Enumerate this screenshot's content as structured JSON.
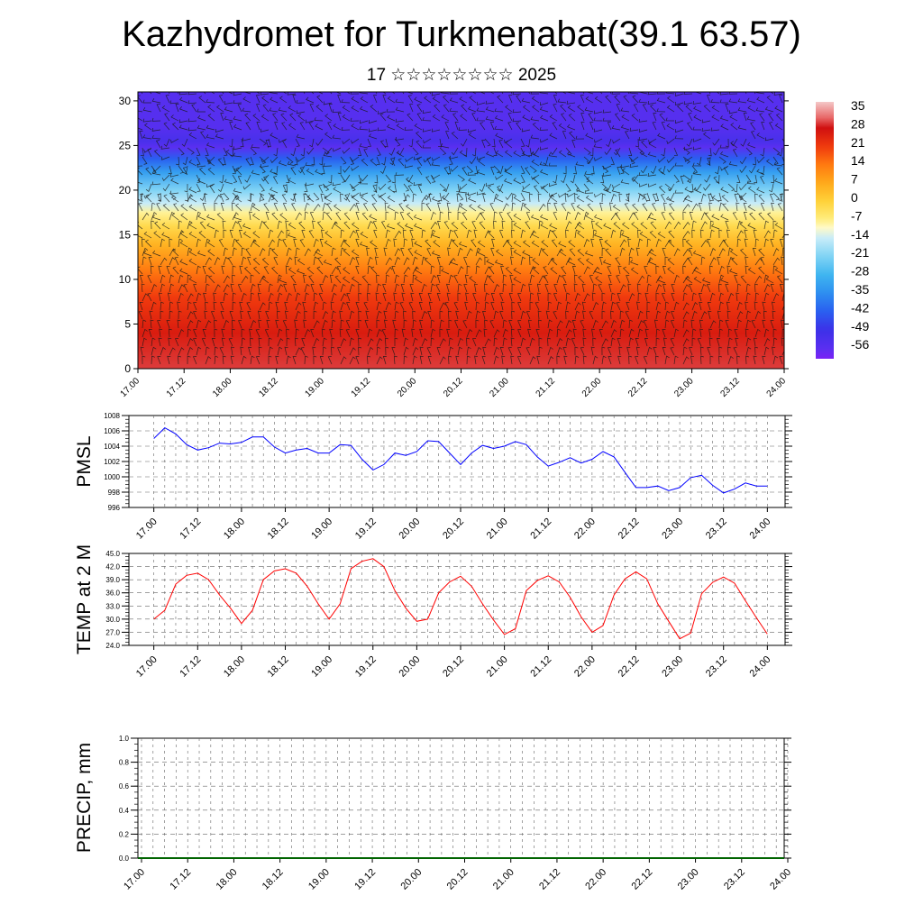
{
  "header": {
    "title": "Kazhydromet for Turkmenabat(39.1 63.57)",
    "subtitle": "17 ☆☆☆☆☆☆☆☆ 2025"
  },
  "colors": {
    "pmsl_line": "#0000ff",
    "temp_line": "#ff0000",
    "precip_line": "#006400",
    "grid": "#555555"
  },
  "chart_data": [
    {
      "type": "heatmap",
      "title": "",
      "xlabel": "",
      "ylabel": "",
      "x_tick_labels": [
        "17.00",
        "17.12",
        "18.00",
        "18.12",
        "19.00",
        "19.12",
        "20.00",
        "20.12",
        "21.00",
        "21.12",
        "22.00",
        "22.12",
        "23.00",
        "23.12",
        "24.00"
      ],
      "y_ticks": [
        0,
        5,
        10,
        15,
        20,
        25,
        30
      ],
      "ylim": [
        0,
        31
      ],
      "colorbar": {
        "labels": [
          "35",
          "28",
          "21",
          "14",
          "7",
          "0",
          "-7",
          "-14",
          "-21",
          "-28",
          "-35",
          "-42",
          "-49",
          "-56"
        ],
        "range": [
          -60,
          38
        ]
      },
      "overlay": "wind barbs",
      "vertical_profile": [
        {
          "level": 0,
          "value": 30
        },
        {
          "level": 4,
          "value": 26
        },
        {
          "level": 8,
          "value": 21
        },
        {
          "level": 11,
          "value": 14
        },
        {
          "level": 14,
          "value": 5
        },
        {
          "level": 16,
          "value": -2
        },
        {
          "level": 17.5,
          "value": -8
        },
        {
          "level": 18.5,
          "value": -14
        },
        {
          "level": 20,
          "value": -21
        },
        {
          "level": 22,
          "value": -32
        },
        {
          "level": 23.5,
          "value": -42
        },
        {
          "level": 24.8,
          "value": -56
        },
        {
          "level": 25.5,
          "value": -52
        },
        {
          "level": 27,
          "value": -55
        },
        {
          "level": 31,
          "value": -55
        }
      ]
    },
    {
      "type": "line",
      "ylabel": "PMSL",
      "ylim": [
        996,
        1008
      ],
      "y_ticks": [
        "996",
        "998",
        "1000",
        "1002",
        "1004",
        "1006",
        "1008"
      ],
      "x_tick_labels": [
        "17.00",
        "17.12",
        "18.00",
        "18.12",
        "19.00",
        "19.12",
        "20.00",
        "20.12",
        "21.00",
        "21.12",
        "22.00",
        "22.12",
        "23.00",
        "23.12",
        "24.00"
      ],
      "series": [
        {
          "values": [
            1005,
            1006.4,
            1005.6,
            1004.2,
            1003.5,
            1003.8,
            1004.4,
            1004.3,
            1004.5,
            1005.2,
            1005.2,
            1003.9,
            1003.1,
            1003.5,
            1003.7,
            1003.1,
            1003.1,
            1004.2,
            1004.1,
            1002.3,
            1000.9,
            1001.6,
            1003.1,
            1002.8,
            1003.3,
            1004.7,
            1004.6,
            1003.1,
            1001.6,
            1003.1,
            1004.1,
            1003.7,
            1004.0,
            1004.6,
            1004.2,
            1002.6,
            1001.4,
            1001.9,
            1002.5,
            1001.8,
            1002.3,
            1003.3,
            1002.6,
            1000.6,
            998.6,
            998.6,
            998.8,
            998.2,
            998.6,
            999.9,
            1000.2,
            998.9,
            997.9,
            998.4,
            999.2,
            998.8,
            998.8
          ]
        }
      ]
    },
    {
      "type": "line",
      "ylabel": "TEMP at 2 M",
      "ylim": [
        24,
        45
      ],
      "y_ticks": [
        "24.0",
        "27.0",
        "30.0",
        "33.0",
        "36.0",
        "39.0",
        "42.0",
        "45.0"
      ],
      "x_tick_labels": [
        "17.00",
        "17.12",
        "18.00",
        "18.12",
        "19.00",
        "19.12",
        "20.00",
        "20.12",
        "21.00",
        "21.12",
        "22.00",
        "22.12",
        "23.00",
        "23.12",
        "24.00"
      ],
      "series": [
        {
          "values": [
            30,
            32,
            38,
            40,
            40.5,
            39,
            35.5,
            32.5,
            29,
            32,
            39,
            41,
            41.5,
            40.5,
            37.5,
            33.5,
            30,
            33.5,
            41.5,
            43.2,
            43.8,
            42,
            36.5,
            32.5,
            29.5,
            30,
            36,
            38.5,
            39.8,
            37.5,
            33.5,
            29.8,
            26.5,
            27.8,
            36.5,
            38.8,
            39.9,
            38.5,
            35,
            30.5,
            27,
            28.5,
            35.5,
            39.2,
            40.8,
            39.2,
            33.5,
            29.5,
            25.5,
            26.8,
            35.8,
            38.4,
            39.6,
            38.2,
            34.2,
            30.3,
            26.6
          ]
        }
      ]
    },
    {
      "type": "line",
      "ylabel": "PRECIP, mm",
      "ylim": [
        0,
        1
      ],
      "y_ticks": [
        "0.0",
        "0.2",
        "0.4",
        "0.6",
        "0.8",
        "1.0"
      ],
      "x_tick_labels": [
        "17.00",
        "17.12",
        "18.00",
        "18.12",
        "19.00",
        "19.12",
        "20.00",
        "20.12",
        "21.00",
        "21.12",
        "22.00",
        "22.12",
        "23.00",
        "23.12",
        "24.00"
      ],
      "series": [
        {
          "values": [
            0,
            0
          ]
        }
      ]
    }
  ]
}
